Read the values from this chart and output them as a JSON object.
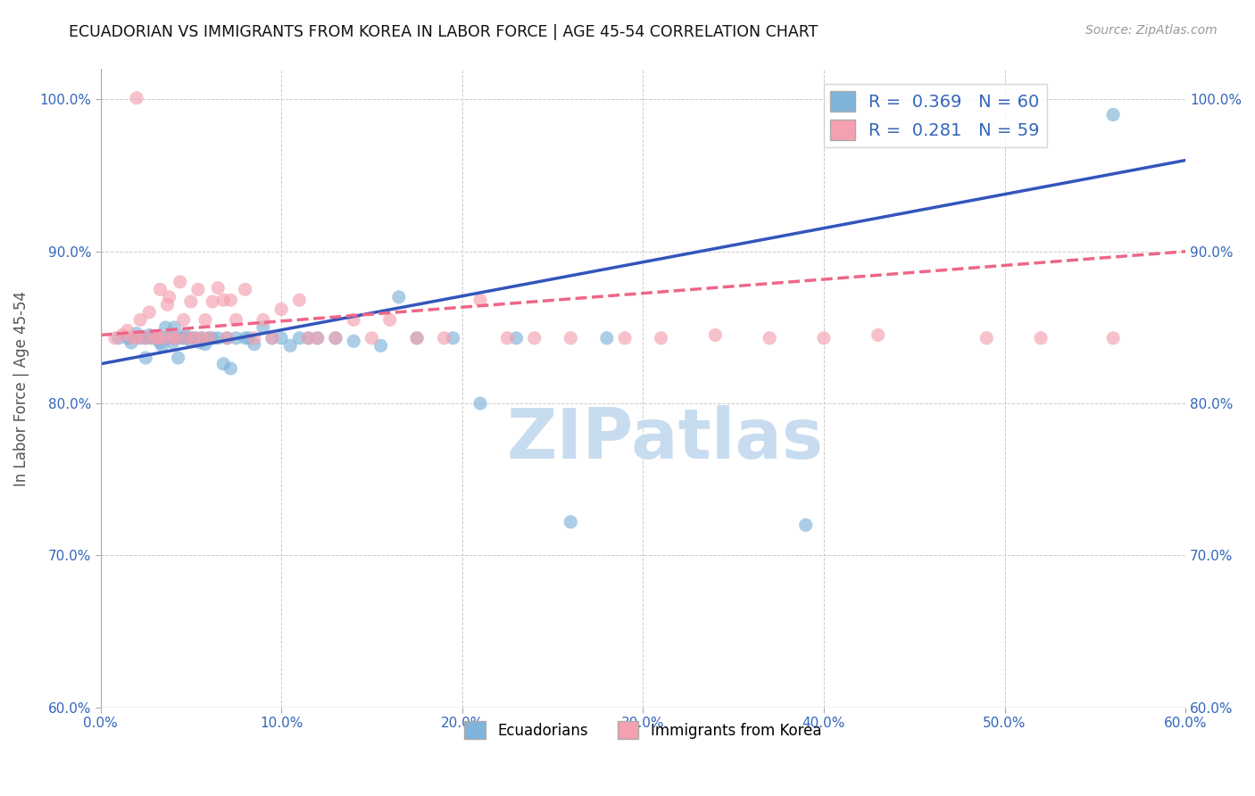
{
  "title": "ECUADORIAN VS IMMIGRANTS FROM KOREA IN LABOR FORCE | AGE 45-54 CORRELATION CHART",
  "source": "Source: ZipAtlas.com",
  "ylabel": "In Labor Force | Age 45-54",
  "xlim": [
    0.0,
    0.6
  ],
  "ylim": [
    0.6,
    1.02
  ],
  "xticks": [
    0.0,
    0.1,
    0.2,
    0.3,
    0.4,
    0.5,
    0.6
  ],
  "yticks": [
    0.6,
    0.7,
    0.8,
    0.9,
    1.0
  ],
  "xticklabels": [
    "0.0%",
    "10.0%",
    "20.0%",
    "30.0%",
    "40.0%",
    "50.0%",
    "60.0%"
  ],
  "yticklabels": [
    "60.0%",
    "70.0%",
    "80.0%",
    "90.0%",
    "100.0%"
  ],
  "blue_color": "#7FB3D9",
  "pink_color": "#F4A0B0",
  "blue_line_color": "#3355BB",
  "pink_line_color": "#EE6688",
  "R_blue": 0.369,
  "N_blue": 60,
  "R_pink": 0.281,
  "N_pink": 59,
  "blue_x": [
    0.01,
    0.015,
    0.017,
    0.02,
    0.022,
    0.025,
    0.025,
    0.027,
    0.028,
    0.03,
    0.032,
    0.033,
    0.034,
    0.035,
    0.036,
    0.038,
    0.04,
    0.04,
    0.041,
    0.042,
    0.043,
    0.045,
    0.046,
    0.047,
    0.048,
    0.05,
    0.051,
    0.053,
    0.055,
    0.056,
    0.058,
    0.06,
    0.062,
    0.065,
    0.068,
    0.07,
    0.072,
    0.075,
    0.08,
    0.082,
    0.085,
    0.09,
    0.095,
    0.1,
    0.105,
    0.11,
    0.115,
    0.12,
    0.13,
    0.14,
    0.155,
    0.165,
    0.175,
    0.195,
    0.21,
    0.23,
    0.26,
    0.28,
    0.39,
    0.56
  ],
  "blue_y": [
    0.843,
    0.843,
    0.84,
    0.846,
    0.843,
    0.83,
    0.843,
    0.845,
    0.843,
    0.843,
    0.842,
    0.84,
    0.838,
    0.843,
    0.85,
    0.843,
    0.84,
    0.843,
    0.85,
    0.843,
    0.83,
    0.843,
    0.843,
    0.845,
    0.843,
    0.841,
    0.843,
    0.843,
    0.84,
    0.843,
    0.839,
    0.843,
    0.843,
    0.843,
    0.826,
    0.843,
    0.823,
    0.843,
    0.843,
    0.843,
    0.839,
    0.85,
    0.843,
    0.843,
    0.838,
    0.843,
    0.843,
    0.843,
    0.843,
    0.841,
    0.838,
    0.87,
    0.843,
    0.843,
    0.8,
    0.843,
    0.722,
    0.843,
    0.72,
    0.99
  ],
  "pink_x": [
    0.008,
    0.012,
    0.015,
    0.018,
    0.02,
    0.022,
    0.025,
    0.027,
    0.03,
    0.032,
    0.033,
    0.035,
    0.037,
    0.038,
    0.04,
    0.042,
    0.044,
    0.046,
    0.048,
    0.05,
    0.052,
    0.054,
    0.056,
    0.058,
    0.06,
    0.062,
    0.065,
    0.068,
    0.07,
    0.072,
    0.075,
    0.08,
    0.085,
    0.09,
    0.095,
    0.1,
    0.11,
    0.115,
    0.12,
    0.13,
    0.14,
    0.15,
    0.16,
    0.175,
    0.19,
    0.21,
    0.225,
    0.24,
    0.26,
    0.29,
    0.31,
    0.34,
    0.37,
    0.4,
    0.43,
    0.49,
    0.52,
    0.56,
    0.02
  ],
  "pink_y": [
    0.843,
    0.845,
    0.848,
    0.843,
    0.843,
    0.855,
    0.843,
    0.86,
    0.843,
    0.843,
    0.875,
    0.843,
    0.865,
    0.87,
    0.843,
    0.843,
    0.88,
    0.855,
    0.843,
    0.867,
    0.843,
    0.875,
    0.843,
    0.855,
    0.843,
    0.867,
    0.876,
    0.868,
    0.843,
    0.868,
    0.855,
    0.875,
    0.843,
    0.855,
    0.843,
    0.862,
    0.868,
    0.843,
    0.843,
    0.843,
    0.855,
    0.843,
    0.855,
    0.843,
    0.843,
    0.868,
    0.843,
    0.843,
    0.843,
    0.843,
    0.843,
    0.845,
    0.843,
    0.843,
    0.845,
    0.843,
    0.843,
    0.843,
    1.001
  ],
  "watermark": "ZIPatlas",
  "watermark_color": "#C8DCF0",
  "legend_label_blue": "Ecuadorians",
  "legend_label_pink": "Immigrants from Korea"
}
